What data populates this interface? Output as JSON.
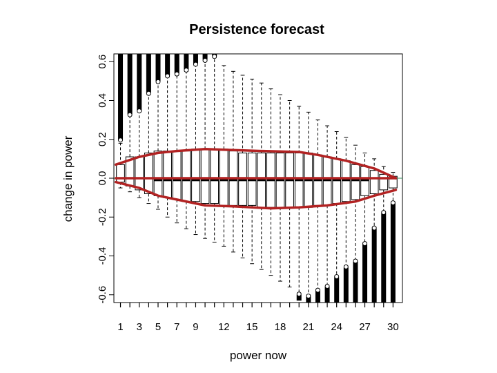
{
  "chart_data": {
    "type": "box",
    "title": "Persistence forecast",
    "xlabel": "power now",
    "ylabel": "change in power",
    "ylim": [
      -0.64,
      0.64
    ],
    "yticks": [
      -0.6,
      -0.4,
      -0.2,
      0.0,
      0.2,
      0.4,
      0.6
    ],
    "ytick_labels": [
      "-0.6",
      "-0.4",
      "-0.2",
      "0.0",
      "0.2",
      "0.4",
      "0.6"
    ],
    "xlim": [
      0.3,
      31.0
    ],
    "x_tick_labels": [
      "1",
      "3",
      "5",
      "7",
      "9",
      "12",
      "15",
      "18",
      "21",
      "24",
      "27",
      "30"
    ],
    "x_tick_positions": [
      1,
      3,
      5,
      7,
      9,
      12,
      15,
      18,
      21,
      24,
      27,
      30
    ],
    "categories": [
      1,
      2,
      3,
      4,
      5,
      6,
      7,
      8,
      9,
      10,
      11,
      12,
      13,
      14,
      15,
      16,
      17,
      18,
      19,
      20,
      21,
      22,
      23,
      24,
      25,
      26,
      27,
      28,
      29,
      30
    ],
    "boxes": [
      {
        "x": 1,
        "q1": -0.02,
        "median": 0.0,
        "q3": 0.07,
        "whisker_low": -0.05,
        "whisker_high": 0.18,
        "outlier_high": [
          0.2,
          0.64
        ],
        "outlier_low": []
      },
      {
        "x": 2,
        "q1": -0.04,
        "median": 0.0,
        "q3": 0.11,
        "whisker_low": -0.07,
        "whisker_high": 0.32,
        "outlier_high": [
          0.33,
          0.64
        ],
        "outlier_low": []
      },
      {
        "x": 3,
        "q1": -0.06,
        "median": 0.0,
        "q3": 0.11,
        "whisker_low": -0.1,
        "whisker_high": 0.34,
        "outlier_high": [
          0.35,
          0.64
        ],
        "outlier_low": []
      },
      {
        "x": 4,
        "q1": -0.08,
        "median": 0.0,
        "q3": 0.13,
        "whisker_low": -0.13,
        "whisker_high": 0.43,
        "outlier_high": [
          0.44,
          0.64
        ],
        "outlier_low": []
      },
      {
        "x": 5,
        "q1": -0.09,
        "median": -0.01,
        "q3": 0.14,
        "whisker_low": -0.16,
        "whisker_high": 0.49,
        "outlier_high": [
          0.5,
          0.64
        ],
        "outlier_low": []
      },
      {
        "x": 6,
        "q1": -0.1,
        "median": -0.01,
        "q3": 0.14,
        "whisker_low": -0.2,
        "whisker_high": 0.52,
        "outlier_high": [
          0.53,
          0.64
        ],
        "outlier_low": []
      },
      {
        "x": 7,
        "q1": -0.11,
        "median": -0.01,
        "q3": 0.14,
        "whisker_low": -0.23,
        "whisker_high": 0.53,
        "outlier_high": [
          0.54,
          0.64
        ],
        "outlier_low": []
      },
      {
        "x": 8,
        "q1": -0.12,
        "median": -0.01,
        "q3": 0.14,
        "whisker_low": -0.26,
        "whisker_high": 0.55,
        "outlier_high": [
          0.56,
          0.64
        ],
        "outlier_low": []
      },
      {
        "x": 9,
        "q1": -0.12,
        "median": -0.01,
        "q3": 0.15,
        "whisker_low": -0.29,
        "whisker_high": 0.58,
        "outlier_high": [
          0.59,
          0.64
        ],
        "outlier_low": []
      },
      {
        "x": 10,
        "q1": -0.13,
        "median": -0.01,
        "q3": 0.15,
        "whisker_low": -0.31,
        "whisker_high": 0.6,
        "outlier_high": [
          0.61,
          0.64
        ],
        "outlier_low": []
      },
      {
        "x": 11,
        "q1": -0.13,
        "median": -0.01,
        "q3": 0.15,
        "whisker_low": -0.33,
        "whisker_high": 0.62,
        "outlier_high": [
          0.63,
          0.64
        ],
        "outlier_low": []
      },
      {
        "x": 12,
        "q1": -0.14,
        "median": -0.01,
        "q3": 0.15,
        "whisker_low": -0.35,
        "whisker_high": 0.58,
        "outlier_high": [],
        "outlier_low": []
      },
      {
        "x": 13,
        "q1": -0.14,
        "median": -0.01,
        "q3": 0.14,
        "whisker_low": -0.38,
        "whisker_high": 0.55,
        "outlier_high": [],
        "outlier_low": []
      },
      {
        "x": 14,
        "q1": -0.14,
        "median": -0.01,
        "q3": 0.13,
        "whisker_low": -0.41,
        "whisker_high": 0.53,
        "outlier_high": [],
        "outlier_low": []
      },
      {
        "x": 15,
        "q1": -0.14,
        "median": -0.01,
        "q3": 0.13,
        "whisker_low": -0.44,
        "whisker_high": 0.51,
        "outlier_high": [],
        "outlier_low": []
      },
      {
        "x": 16,
        "q1": -0.15,
        "median": -0.01,
        "q3": 0.13,
        "whisker_low": -0.47,
        "whisker_high": 0.49,
        "outlier_high": [],
        "outlier_low": []
      },
      {
        "x": 17,
        "q1": -0.15,
        "median": -0.01,
        "q3": 0.13,
        "whisker_low": -0.5,
        "whisker_high": 0.46,
        "outlier_high": [],
        "outlier_low": []
      },
      {
        "x": 18,
        "q1": -0.15,
        "median": -0.01,
        "q3": 0.13,
        "whisker_low": -0.53,
        "whisker_high": 0.43,
        "outlier_high": [],
        "outlier_low": []
      },
      {
        "x": 19,
        "q1": -0.15,
        "median": -0.01,
        "q3": 0.13,
        "whisker_low": -0.56,
        "whisker_high": 0.4,
        "outlier_high": [],
        "outlier_low": []
      },
      {
        "x": 20,
        "q1": -0.15,
        "median": -0.01,
        "q3": 0.13,
        "whisker_low": -0.59,
        "whisker_high": 0.37,
        "outlier_high": [],
        "outlier_low": [
          -0.6,
          -0.63
        ]
      },
      {
        "x": 21,
        "q1": -0.15,
        "median": -0.01,
        "q3": 0.13,
        "whisker_low": -0.6,
        "whisker_high": 0.34,
        "outlier_high": [],
        "outlier_low": [
          -0.61,
          -0.64
        ]
      },
      {
        "x": 22,
        "q1": -0.14,
        "median": -0.01,
        "q3": 0.12,
        "whisker_low": -0.57,
        "whisker_high": 0.3,
        "outlier_high": [],
        "outlier_low": [
          -0.58,
          -0.64
        ]
      },
      {
        "x": 23,
        "q1": -0.14,
        "median": -0.01,
        "q3": 0.11,
        "whisker_low": -0.55,
        "whisker_high": 0.27,
        "outlier_high": [],
        "outlier_low": [
          -0.56,
          -0.64
        ]
      },
      {
        "x": 24,
        "q1": -0.13,
        "median": -0.01,
        "q3": 0.1,
        "whisker_low": -0.5,
        "whisker_high": 0.24,
        "outlier_high": [],
        "outlier_low": [
          -0.51,
          -0.64
        ]
      },
      {
        "x": 25,
        "q1": -0.12,
        "median": -0.01,
        "q3": 0.09,
        "whisker_low": -0.45,
        "whisker_high": 0.21,
        "outlier_high": [],
        "outlier_low": [
          -0.46,
          -0.64
        ]
      },
      {
        "x": 26,
        "q1": -0.11,
        "median": -0.01,
        "q3": 0.07,
        "whisker_low": -0.42,
        "whisker_high": 0.17,
        "outlier_high": [],
        "outlier_low": [
          -0.43,
          -0.64
        ]
      },
      {
        "x": 27,
        "q1": -0.09,
        "median": -0.01,
        "q3": 0.06,
        "whisker_low": -0.33,
        "whisker_high": 0.13,
        "outlier_high": [],
        "outlier_low": [
          -0.34,
          -0.64
        ]
      },
      {
        "x": 28,
        "q1": -0.08,
        "median": 0.0,
        "q3": 0.04,
        "whisker_low": -0.25,
        "whisker_high": 0.1,
        "outlier_high": [],
        "outlier_low": [
          -0.26,
          -0.64
        ]
      },
      {
        "x": 29,
        "q1": -0.06,
        "median": 0.0,
        "q3": 0.02,
        "whisker_low": -0.17,
        "whisker_high": 0.06,
        "outlier_high": [],
        "outlier_low": [
          -0.18,
          -0.64
        ]
      },
      {
        "x": 30,
        "q1": -0.05,
        "median": 0.0,
        "q3": 0.01,
        "whisker_low": -0.12,
        "whisker_high": 0.03,
        "outlier_high": [],
        "outlier_low": [
          -0.13,
          -0.64
        ]
      }
    ],
    "overlay_lines": [
      {
        "role": "upper-envelope",
        "color": "#b22222",
        "points": [
          [
            0.5,
            0.07
          ],
          [
            3,
            0.11
          ],
          [
            5,
            0.13
          ],
          [
            7,
            0.14
          ],
          [
            10,
            0.15
          ],
          [
            13,
            0.145
          ],
          [
            16,
            0.14
          ],
          [
            20,
            0.135
          ],
          [
            22,
            0.12
          ],
          [
            25,
            0.09
          ],
          [
            28,
            0.05
          ],
          [
            30.3,
            0.0
          ]
        ]
      },
      {
        "role": "zero-line",
        "color": "#b22222",
        "points": [
          [
            0.5,
            0.0
          ],
          [
            30.3,
            0.0
          ]
        ]
      },
      {
        "role": "lower-envelope",
        "color": "#b22222",
        "points": [
          [
            0.5,
            -0.02
          ],
          [
            3,
            -0.05
          ],
          [
            5,
            -0.09
          ],
          [
            7,
            -0.11
          ],
          [
            10,
            -0.14
          ],
          [
            13,
            -0.145
          ],
          [
            17,
            -0.155
          ],
          [
            20,
            -0.15
          ],
          [
            23,
            -0.14
          ],
          [
            26,
            -0.12
          ],
          [
            28,
            -0.09
          ],
          [
            30.3,
            -0.06
          ]
        ]
      }
    ],
    "colors": {
      "box": "#000000",
      "overlay": "#b22222",
      "zero_ref": "#2e8b57"
    },
    "grid": false,
    "legend": "none"
  }
}
